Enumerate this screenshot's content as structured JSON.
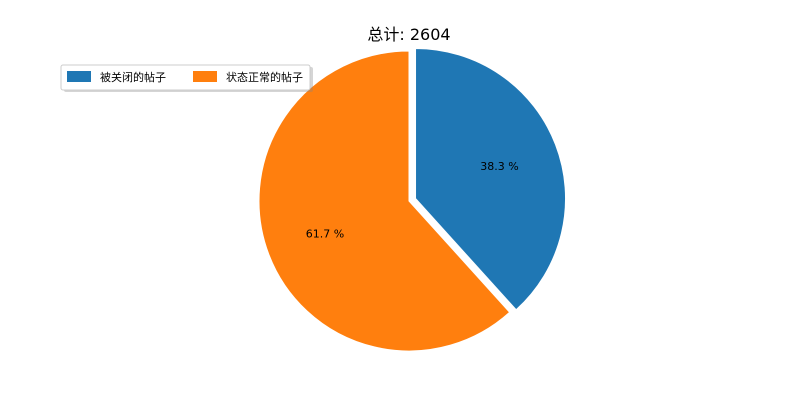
{
  "chart_data": {
    "type": "pie",
    "title": "总计: 2604",
    "start_angle_deg": 90,
    "direction": "clockwise",
    "legend_placement": "upper-left",
    "slices": [
      {
        "label": "被关闭的帖子",
        "value": 38.3,
        "pct_label": "38.3 %",
        "color": "#1f77b4",
        "exploded": true
      },
      {
        "label": "状态正常的帖子",
        "value": 61.7,
        "pct_label": "61.7 %",
        "color": "#ff7f0e",
        "exploded": false
      }
    ]
  }
}
